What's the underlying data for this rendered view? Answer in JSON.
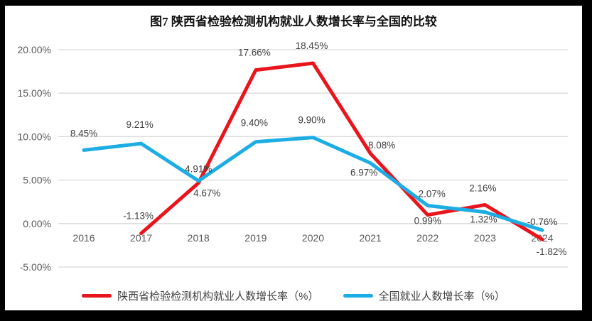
{
  "chart_data": {
    "type": "line",
    "title": "图7 陕西省检验检测机构就业人数增长率与全国的比较",
    "categories": [
      "2016",
      "2017",
      "2018",
      "2019",
      "2020",
      "2021",
      "2022",
      "2023",
      "2024"
    ],
    "xlabel": "",
    "ylabel": "",
    "ylim": [
      -5,
      20
    ],
    "y_ticks": [
      {
        "label": "20.00%",
        "value": 20
      },
      {
        "label": "15.00%",
        "value": 15
      },
      {
        "label": "10.00%",
        "value": 10
      },
      {
        "label": "5.00%",
        "value": 5
      },
      {
        "label": "0.00%",
        "value": 0
      },
      {
        "label": "-5.00%",
        "value": -5
      }
    ],
    "grid": "horizontal",
    "grid_color": "#d9d9d9",
    "legend_position": "bottom",
    "line_width": 5,
    "series": [
      {
        "name": "陕西省检验检测机构就业人数增长率（%）",
        "color": "#e8151c",
        "values": [
          null,
          -1.13,
          4.67,
          17.66,
          18.45,
          8.08,
          0.99,
          2.16,
          -1.82
        ],
        "label_offsets": [
          null,
          [
            -4,
            -20
          ],
          [
            12,
            19
          ],
          [
            -2,
            -20
          ],
          [
            -2,
            -20
          ],
          [
            16,
            -7
          ],
          [
            0,
            13
          ],
          [
            -3,
            -19
          ],
          [
            13,
            22
          ]
        ]
      },
      {
        "name": "全国就业人数增长率（%）",
        "color": "#1cade4",
        "values": [
          8.45,
          9.21,
          4.91,
          9.4,
          9.9,
          6.97,
          2.07,
          1.32,
          -0.76
        ],
        "label_offsets": [
          [
            0,
            -19
          ],
          [
            -2,
            -22
          ],
          [
            0,
            -12
          ],
          [
            -2,
            -22
          ],
          [
            -2,
            -20
          ],
          [
            -9,
            18
          ],
          [
            6,
            -12
          ],
          [
            -2,
            15
          ],
          [
            0,
            -7
          ]
        ]
      }
    ]
  }
}
